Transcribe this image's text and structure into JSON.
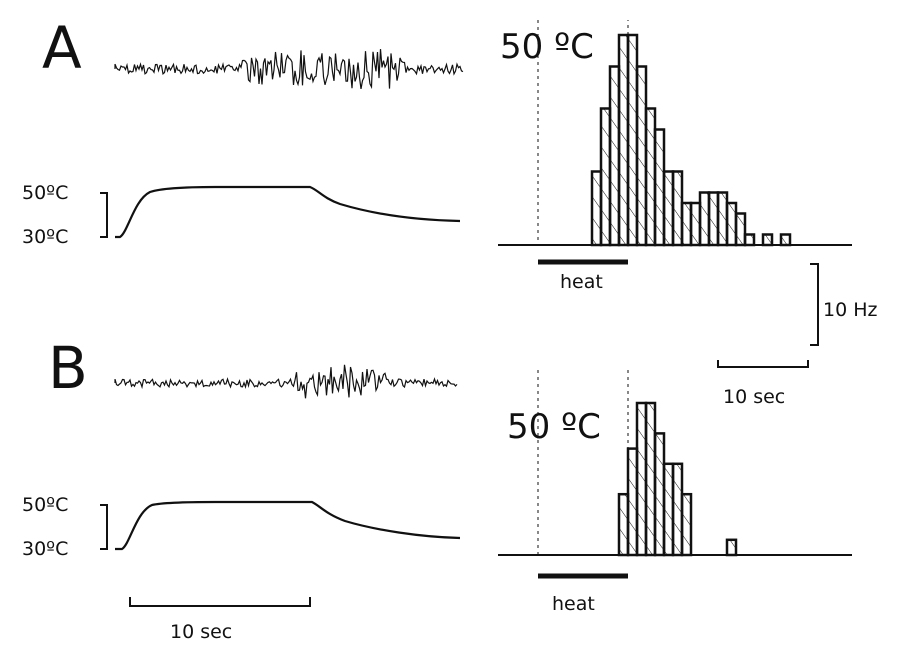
{
  "colors": {
    "ink": "#111111",
    "background": "#ffffff"
  },
  "panels": [
    {
      "label": "A",
      "temp_high_label": "50ºC",
      "temp_low_label": "30ºC",
      "stim_label": "50 ºC",
      "heat_label": "heat"
    },
    {
      "label": "B",
      "temp_high_label": "50ºC",
      "temp_low_label": "30ºC",
      "stim_label": "50 ºC",
      "heat_label": "heat"
    }
  ],
  "scale_bars": {
    "rate": "10 Hz",
    "hist_time": "10 sec",
    "trace_time": "10 sec"
  },
  "chart_data": [
    {
      "type": "bar",
      "panel": "A",
      "title": "",
      "xlabel": "",
      "ylabel": "",
      "x_units": "sec",
      "y_units": "Hz",
      "bin_width": 1,
      "x_start": 0,
      "heat_on": [
        0,
        10
      ],
      "values": [
        0,
        0,
        0,
        0,
        0,
        0,
        7,
        13,
        17,
        20,
        20,
        17,
        13,
        11,
        7,
        7,
        4,
        4,
        5,
        5,
        5,
        4,
        3,
        1,
        0,
        1,
        0,
        1,
        0,
        0,
        0,
        0,
        0,
        0,
        0,
        0
      ]
    },
    {
      "type": "bar",
      "panel": "B",
      "title": "",
      "xlabel": "",
      "ylabel": "",
      "x_units": "sec",
      "y_units": "Hz",
      "bin_width": 1,
      "x_start": 0,
      "heat_on": [
        0,
        10
      ],
      "values": [
        0,
        0,
        0,
        0,
        0,
        0,
        0,
        0,
        0,
        4,
        7,
        10,
        10,
        8,
        6,
        6,
        4,
        0,
        0,
        0,
        0,
        1,
        0,
        0,
        0,
        0,
        0,
        0,
        0,
        0,
        0,
        0,
        0,
        0,
        0,
        0
      ]
    }
  ]
}
